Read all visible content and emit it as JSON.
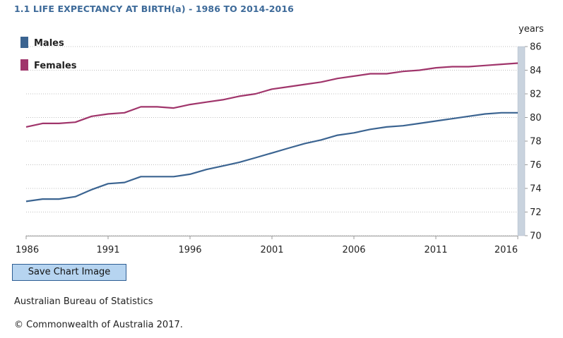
{
  "chart_data": {
    "type": "line",
    "title": "1.1 LIFE EXPECTANCY AT BIRTH(a) - 1986 TO 2014-2016",
    "xlabel": "",
    "ylabel": "years",
    "xlim": [
      1986,
      2016
    ],
    "ylim": [
      70,
      86
    ],
    "x_ticks": [
      "1986",
      "1991",
      "1996",
      "2001",
      "2006",
      "2011",
      "2016"
    ],
    "y_ticks": [
      "70",
      "72",
      "74",
      "76",
      "78",
      "80",
      "82",
      "84",
      "86"
    ],
    "grid": true,
    "legend_position": "top-left",
    "x": [
      1986,
      1987,
      1988,
      1989,
      1990,
      1991,
      1992,
      1993,
      1994,
      1995,
      1996,
      1997,
      1998,
      1999,
      2000,
      2001,
      2002,
      2003,
      2004,
      2005,
      2006,
      2007,
      2008,
      2009,
      2010,
      2011,
      2012,
      2013,
      2014,
      2015,
      2016
    ],
    "series": [
      {
        "name": "Males",
        "color": "#3b6491",
        "values": [
          72.9,
          73.1,
          73.1,
          73.3,
          73.9,
          74.4,
          74.5,
          75.0,
          75.0,
          75.0,
          75.2,
          75.6,
          75.9,
          76.2,
          76.6,
          77.0,
          77.4,
          77.8,
          78.1,
          78.5,
          78.7,
          79.0,
          79.2,
          79.3,
          79.5,
          79.7,
          79.9,
          80.1,
          80.3,
          80.4,
          80.4
        ]
      },
      {
        "name": "Females",
        "color": "#a0356b",
        "values": [
          79.2,
          79.5,
          79.5,
          79.6,
          80.1,
          80.3,
          80.4,
          80.9,
          80.9,
          80.8,
          81.1,
          81.3,
          81.5,
          81.8,
          82.0,
          82.4,
          82.6,
          82.8,
          83.0,
          83.3,
          83.5,
          83.7,
          83.7,
          83.9,
          84.0,
          84.2,
          84.3,
          84.3,
          84.4,
          84.5,
          84.6
        ]
      }
    ]
  },
  "toolbar": {
    "save_label": "Save Chart Image"
  },
  "footer": {
    "source": "Australian Bureau of Statistics",
    "copyright": "© Commonwealth of Australia 2017."
  }
}
